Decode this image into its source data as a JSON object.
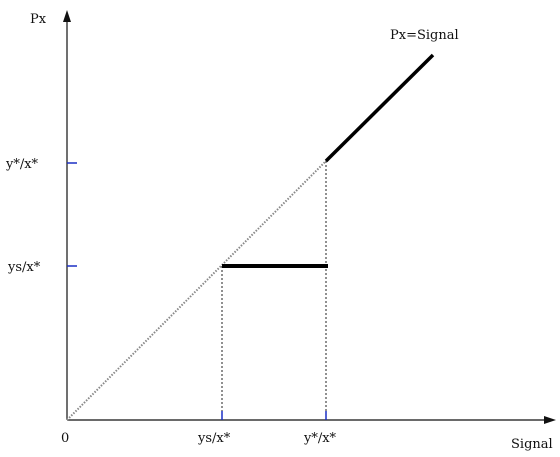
{
  "axes": {
    "y_label": "Px",
    "x_label": "Signal",
    "origin_label": "0"
  },
  "ticks": {
    "x": [
      "ys/x*",
      "y*/x*"
    ],
    "y": [
      "y*/x*",
      "ys/x*"
    ]
  },
  "annotations": {
    "line_label": "Px=Signal"
  },
  "colors": {
    "axis": "#111111",
    "tick": "#1a2fc4",
    "dotted": "#888888",
    "segment": "#000000"
  }
}
